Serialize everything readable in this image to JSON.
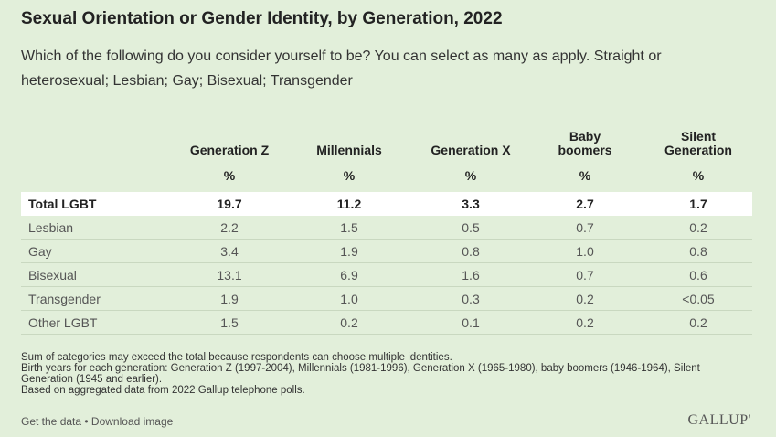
{
  "title": "Sexual Orientation or Gender Identity, by Generation, 2022",
  "subtitle": "Which of the following do you consider yourself to be? You can select as many as apply. Straight or heterosexual; Lesbian; Gay; Bisexual; Transgender",
  "chart_data": {
    "type": "table",
    "columns": [
      "Generation Z",
      "Millennials",
      "Generation X",
      "Baby boomers",
      "Silent Generation"
    ],
    "unit_row": [
      "%",
      "%",
      "%",
      "%",
      "%"
    ],
    "rows": [
      {
        "label": "Total LGBT",
        "values": [
          "19.7",
          "11.2",
          "3.3",
          "2.7",
          "1.7"
        ],
        "emphasis": true
      },
      {
        "label": "Lesbian",
        "values": [
          "2.2",
          "1.5",
          "0.5",
          "0.7",
          "0.2"
        ]
      },
      {
        "label": "Gay",
        "values": [
          "3.4",
          "1.9",
          "0.8",
          "1.0",
          "0.8"
        ]
      },
      {
        "label": "Bisexual",
        "values": [
          "13.1",
          "6.9",
          "1.6",
          "0.7",
          "0.6"
        ]
      },
      {
        "label": "Transgender",
        "values": [
          "1.9",
          "1.0",
          "0.3",
          "0.2",
          "<0.05"
        ]
      },
      {
        "label": "Other LGBT",
        "values": [
          "1.5",
          "0.2",
          "0.1",
          "0.2",
          "0.2"
        ]
      }
    ]
  },
  "notes": [
    "Sum of categories may exceed the total because respondents can choose multiple identities.",
    "Birth years for each generation: Generation Z (1997-2004), Millennials (1981-1996), Generation X (1965-1980), baby boomers (1946-1964), Silent Generation (1945 and earlier).",
    "Based on aggregated data from 2022 Gallup telephone polls."
  ],
  "footer": {
    "get_data": "Get the data",
    "separator": " • ",
    "download": "Download image"
  },
  "logo": "GALLUP'",
  "colors": {
    "background": "#e2efda",
    "total_row": "#ffffff",
    "divider": "#c9d8c0"
  }
}
